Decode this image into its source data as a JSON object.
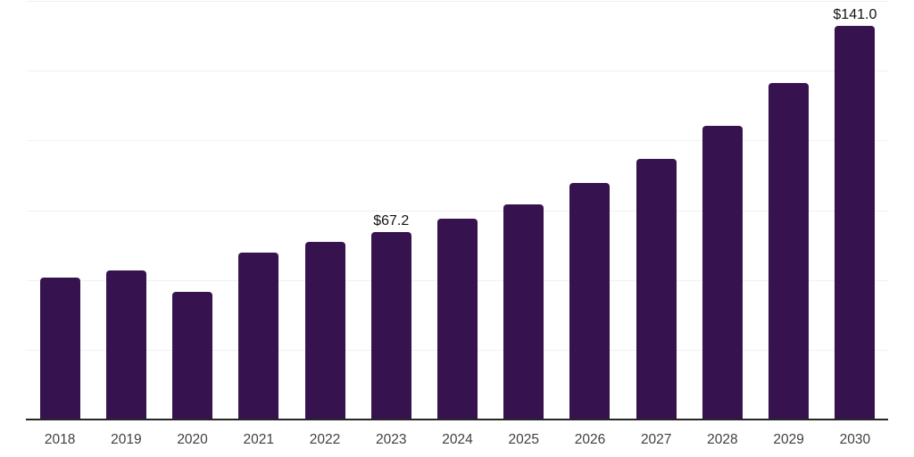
{
  "chart_data": {
    "type": "bar",
    "title": "",
    "xlabel": "",
    "ylabel": "",
    "categories": [
      "2018",
      "2019",
      "2020",
      "2021",
      "2022",
      "2023",
      "2024",
      "2025",
      "2026",
      "2027",
      "2028",
      "2029",
      "2030"
    ],
    "values": [
      50.8,
      53.4,
      45.8,
      59.8,
      63.6,
      67.2,
      71.9,
      77.0,
      84.6,
      93.3,
      105.2,
      120.5,
      141.0
    ],
    "data_labels": {
      "2023": "$67.2",
      "2030": "$141.0"
    },
    "ylim": [
      0,
      150
    ],
    "grid_step": 25,
    "grid": "horizontal-only",
    "y_tick_labels_visible": false,
    "legend": "none",
    "colors": {
      "bar": "#36124E",
      "axis_line": "#262626",
      "gridline": "#F1F1F3",
      "tick_label": "#404040",
      "value_label": "#121212",
      "background": "#FFFFFF"
    }
  }
}
